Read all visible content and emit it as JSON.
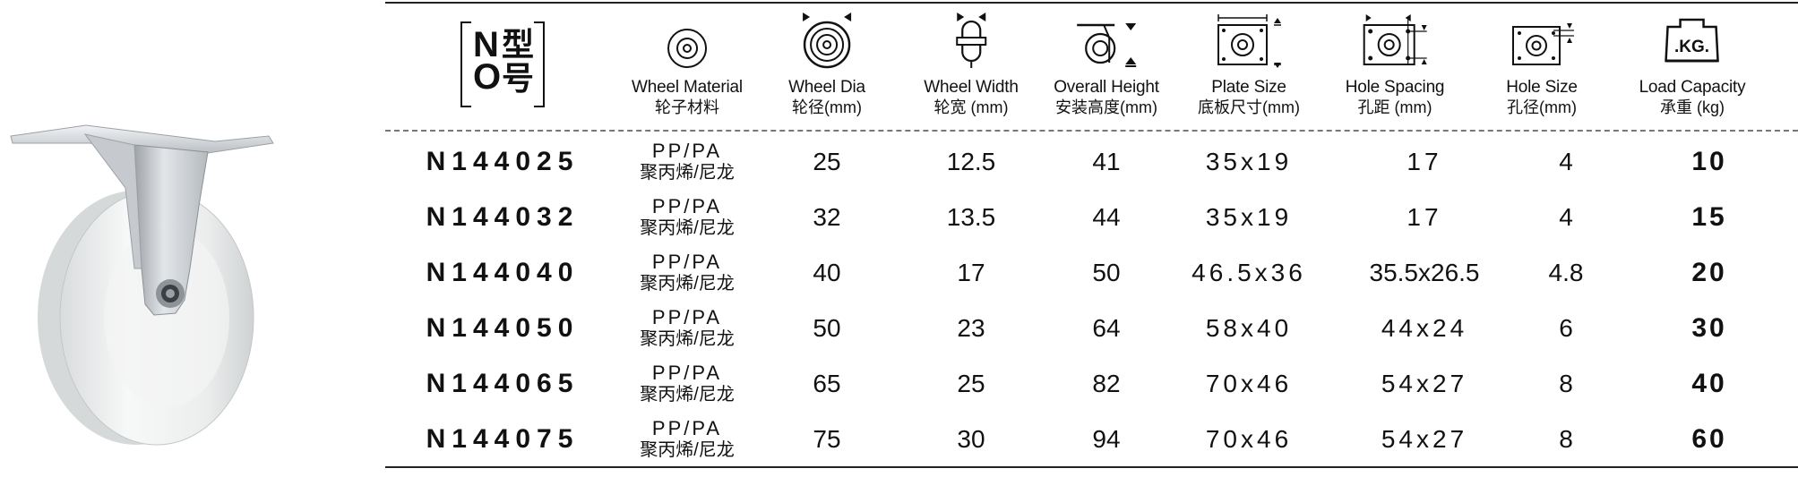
{
  "columns": [
    {
      "key": "no",
      "en": "",
      "cn": "",
      "icon": "model-number-icon",
      "mark_n": "N",
      "mark_o": "O",
      "mark_xing": "型",
      "mark_hao": "号"
    },
    {
      "key": "material",
      "en": "Wheel Material",
      "cn": "轮子材料",
      "icon": "wheel-face-icon"
    },
    {
      "key": "dia",
      "en": "Wheel Dia",
      "cn": "轮径(mm)",
      "icon": "wheel-diameter-icon"
    },
    {
      "key": "width",
      "en": "Wheel Width",
      "cn": "轮宽 (mm)",
      "icon": "wheel-width-icon"
    },
    {
      "key": "height",
      "en": "Overall Height",
      "cn": "安装高度(mm)",
      "icon": "overall-height-icon"
    },
    {
      "key": "plate",
      "en": "Plate Size",
      "cn": "底板尺寸(mm)",
      "icon": "plate-size-icon"
    },
    {
      "key": "hole_spacing",
      "en": "Hole Spacing",
      "cn": "孔距 (mm)",
      "icon": "hole-spacing-icon"
    },
    {
      "key": "hole_size",
      "en": "Hole Size",
      "cn": "孔径(mm)",
      "icon": "hole-size-icon"
    },
    {
      "key": "load",
      "en": "Load Capacity",
      "cn": "承重 (kg)",
      "icon": "load-weight-icon",
      "icon_text": ".KG."
    }
  ],
  "rows": [
    {
      "model": "N144025",
      "mat_a": "PP/PA",
      "mat_b": "聚丙烯/尼龙",
      "dia": "25",
      "width": "12.5",
      "height": "41",
      "plate": "35x19",
      "hole_spacing": "17",
      "hole_size": "4",
      "load": "10"
    },
    {
      "model": "N144032",
      "mat_a": "PP/PA",
      "mat_b": "聚丙烯/尼龙",
      "dia": "32",
      "width": "13.5",
      "height": "44",
      "plate": "35x19",
      "hole_spacing": "17",
      "hole_size": "4",
      "load": "15"
    },
    {
      "model": "N144040",
      "mat_a": "PP/PA",
      "mat_b": "聚丙烯/尼龙",
      "dia": "40",
      "width": "17",
      "height": "50",
      "plate": "46.5x36",
      "hole_spacing": "35.5x26.5",
      "hole_size": "4.8",
      "load": "20"
    },
    {
      "model": "N144050",
      "mat_a": "PP/PA",
      "mat_b": "聚丙烯/尼龙",
      "dia": "50",
      "width": "23",
      "height": "64",
      "plate": "58x40",
      "hole_spacing": "44x24",
      "hole_size": "6",
      "load": "30"
    },
    {
      "model": "N144065",
      "mat_a": "PP/PA",
      "mat_b": "聚丙烯/尼龙",
      "dia": "65",
      "width": "25",
      "height": "82",
      "plate": "70x46",
      "hole_spacing": "54x27",
      "hole_size": "8",
      "load": "40"
    },
    {
      "model": "N144075",
      "mat_a": "PP/PA",
      "mat_b": "聚丙烯/尼龙",
      "dia": "75",
      "width": "30",
      "height": "94",
      "plate": "70x46",
      "hole_spacing": "54x27",
      "hole_size": "8",
      "load": "60"
    }
  ],
  "colors": {
    "text": "#111111",
    "rule": "#222222",
    "dash": "#777777",
    "wheel": "#eef0f0",
    "bracket": "#c9ccd0"
  }
}
